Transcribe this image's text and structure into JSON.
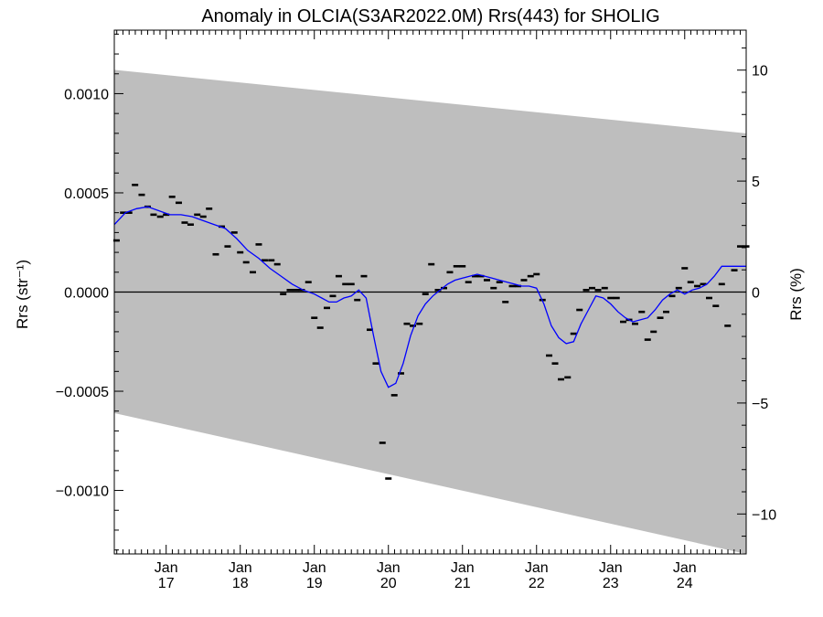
{
  "chart_data": {
    "type": "scatter",
    "title": "Anomaly in OLCIA(S3AR2022.0M) Rrs(443) for SHOLIG",
    "ylabel_left": "Rrs (str⁻¹)",
    "ylabel_right": "Rrs (%)",
    "xlim": [
      2016.3,
      2024.83
    ],
    "ylim_left": [
      -0.00132,
      0.00132
    ],
    "ylim_right": [
      -11.8,
      11.8
    ],
    "left_ticks": [
      {
        "value": 0.001,
        "label": "0.0010"
      },
      {
        "value": 0.0005,
        "label": "0.0005"
      },
      {
        "value": 0.0,
        "label": "0.0000"
      },
      {
        "value": -0.0005,
        "label": "−0.0005"
      },
      {
        "value": -0.001,
        "label": "−0.0010"
      }
    ],
    "right_ticks": [
      {
        "value": 10,
        "label": "10"
      },
      {
        "value": 5,
        "label": "5"
      },
      {
        "value": 0,
        "label": "0"
      },
      {
        "value": -5,
        "label": "−5"
      },
      {
        "value": -10,
        "label": "−10"
      }
    ],
    "x_ticks": [
      {
        "value": 2017,
        "month": "Jan",
        "year": "17"
      },
      {
        "value": 2018,
        "month": "Jan",
        "year": "18"
      },
      {
        "value": 2019,
        "month": "Jan",
        "year": "19"
      },
      {
        "value": 2020,
        "month": "Jan",
        "year": "20"
      },
      {
        "value": 2021,
        "month": "Jan",
        "year": "21"
      },
      {
        "value": 2022,
        "month": "Jan",
        "year": "22"
      },
      {
        "value": 2023,
        "month": "Jan",
        "year": "23"
      },
      {
        "value": 2024,
        "month": "Jan",
        "year": "24"
      }
    ],
    "envelope": {
      "x": [
        2016.3,
        2024.83
      ],
      "upper": [
        0.00112,
        0.0008
      ],
      "lower": [
        -0.00061,
        -0.00132
      ]
    },
    "monthly_anomalies": {
      "x": [
        2016.33,
        2016.42,
        2016.5,
        2016.58,
        2016.67,
        2016.75,
        2016.83,
        2016.92,
        2017.0,
        2017.08,
        2017.17,
        2017.25,
        2017.33,
        2017.42,
        2017.5,
        2017.58,
        2017.67,
        2017.75,
        2017.83,
        2017.92,
        2018.0,
        2018.08,
        2018.17,
        2018.25,
        2018.33,
        2018.42,
        2018.5,
        2018.58,
        2018.67,
        2018.75,
        2018.83,
        2018.92,
        2019.0,
        2019.08,
        2019.17,
        2019.25,
        2019.33,
        2019.42,
        2019.5,
        2019.58,
        2019.67,
        2019.75,
        2019.83,
        2019.92,
        2020.0,
        2020.08,
        2020.17,
        2020.25,
        2020.33,
        2020.42,
        2020.5,
        2020.58,
        2020.67,
        2020.75,
        2020.83,
        2020.92,
        2021.0,
        2021.08,
        2021.17,
        2021.25,
        2021.33,
        2021.42,
        2021.5,
        2021.58,
        2021.67,
        2021.75,
        2021.83,
        2021.92,
        2022.0,
        2022.08,
        2022.17,
        2022.25,
        2022.33,
        2022.42,
        2022.5,
        2022.58,
        2022.67,
        2022.75,
        2022.83,
        2022.92,
        2023.0,
        2023.08,
        2023.17,
        2023.25,
        2023.33,
        2023.42,
        2023.5,
        2023.58,
        2023.67,
        2023.75,
        2023.83,
        2023.92,
        2024.0,
        2024.08,
        2024.17,
        2024.25,
        2024.33,
        2024.42,
        2024.5,
        2024.58,
        2024.67,
        2024.75,
        2024.83
      ],
      "y": [
        0.00026,
        0.0004,
        0.0004,
        0.00054,
        0.00049,
        0.00043,
        0.00039,
        0.00038,
        0.00039,
        0.00048,
        0.00045,
        0.00035,
        0.00034,
        0.00039,
        0.00038,
        0.00042,
        0.00019,
        0.00033,
        0.00023,
        0.0003,
        0.0002,
        0.00015,
        0.0001,
        0.00024,
        0.00016,
        0.00016,
        0.00014,
        -1e-05,
        1e-05,
        1e-05,
        1e-05,
        5e-05,
        -0.00013,
        -0.00018,
        -8e-05,
        -2e-05,
        8e-05,
        4e-05,
        4e-05,
        -4e-05,
        8e-05,
        -0.00019,
        -0.00036,
        -0.00076,
        -0.00094,
        -0.00052,
        -0.00041,
        -0.00016,
        -0.00017,
        -0.00016,
        -1e-05,
        0.00014,
        1e-05,
        2e-05,
        0.0001,
        0.00013,
        0.00013,
        5e-05,
        8e-05,
        8e-05,
        6e-05,
        2e-05,
        5e-05,
        -5e-05,
        3e-05,
        3e-05,
        6e-05,
        8e-05,
        9e-05,
        -4e-05,
        -0.00032,
        -0.00036,
        -0.00044,
        -0.00043,
        -0.00021,
        -9e-05,
        1e-05,
        2e-05,
        1e-05,
        2e-05,
        -3e-05,
        -3e-05,
        -0.00015,
        -0.00014,
        -0.00016,
        -0.0001,
        -0.00024,
        -0.0002,
        -0.00013,
        -0.0001,
        -2e-05,
        2e-05,
        0.00012,
        5e-05,
        3e-05,
        4e-05,
        -3e-05,
        -7e-05,
        4e-05,
        -0.00017,
        0.00011,
        0.00023,
        0.00023
      ]
    },
    "smoothed_series": {
      "x": [
        2016.3,
        2016.45,
        2016.6,
        2016.75,
        2016.9,
        2017.05,
        2017.2,
        2017.35,
        2017.5,
        2017.65,
        2017.8,
        2017.95,
        2018.1,
        2018.25,
        2018.4,
        2018.55,
        2018.7,
        2018.85,
        2019.0,
        2019.1,
        2019.2,
        2019.3,
        2019.4,
        2019.5,
        2019.6,
        2019.7,
        2019.8,
        2019.9,
        2020.0,
        2020.1,
        2020.2,
        2020.3,
        2020.4,
        2020.5,
        2020.6,
        2020.7,
        2020.8,
        2020.9,
        2021.0,
        2021.1,
        2021.2,
        2021.3,
        2021.4,
        2021.5,
        2021.6,
        2021.7,
        2021.8,
        2021.9,
        2022.0,
        2022.1,
        2022.2,
        2022.3,
        2022.4,
        2022.5,
        2022.6,
        2022.7,
        2022.8,
        2022.9,
        2023.0,
        2023.1,
        2023.2,
        2023.3,
        2023.4,
        2023.5,
        2023.6,
        2023.7,
        2023.8,
        2023.9,
        2024.0,
        2024.1,
        2024.2,
        2024.3,
        2024.4,
        2024.5,
        2024.6,
        2024.7,
        2024.83
      ],
      "y": [
        0.00034,
        0.0004,
        0.00042,
        0.00043,
        0.00041,
        0.00039,
        0.00039,
        0.00038,
        0.00036,
        0.00034,
        0.00032,
        0.00027,
        0.00021,
        0.00017,
        0.00012,
        8e-05,
        4e-05,
        1e-05,
        -1e-05,
        -3e-05,
        -5e-05,
        -5e-05,
        -3e-05,
        -2e-05,
        1e-05,
        -3e-05,
        -0.00022,
        -0.0004,
        -0.00048,
        -0.00046,
        -0.00036,
        -0.00022,
        -0.00012,
        -6e-05,
        -2e-05,
        1e-05,
        4e-05,
        6e-05,
        7e-05,
        8e-05,
        9e-05,
        8e-05,
        7e-05,
        6e-05,
        5e-05,
        4e-05,
        3e-05,
        3e-05,
        2e-05,
        -6e-05,
        -0.00017,
        -0.00023,
        -0.00026,
        -0.00025,
        -0.00016,
        -9e-05,
        -2e-05,
        -3e-05,
        -6e-05,
        -0.0001,
        -0.00013,
        -0.00015,
        -0.00014,
        -0.00013,
        -9e-05,
        -4e-05,
        -1e-05,
        1e-05,
        -1e-05,
        1e-05,
        2e-05,
        4e-05,
        8e-05,
        0.00013,
        0.00013,
        0.00013,
        0.00013
      ]
    },
    "colors": {
      "envelope": "#bebebe",
      "smoothed": "#0000ff",
      "markers": "#000000",
      "zero_line": "#000000"
    }
  }
}
